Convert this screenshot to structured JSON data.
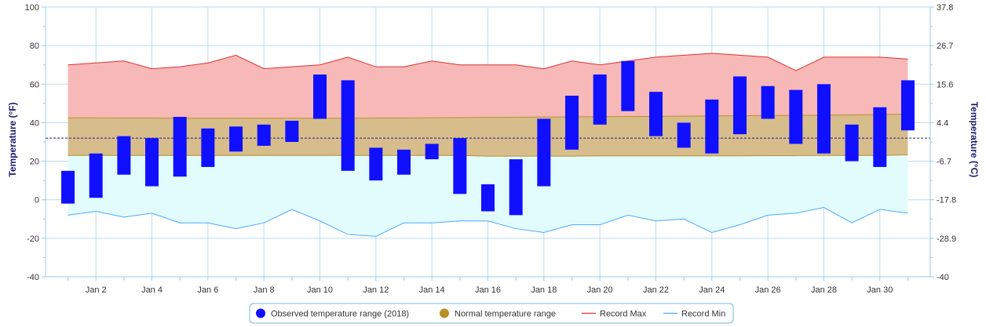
{
  "chart_data": {
    "type": "bar",
    "subtype": "floating-range-bars-with-bands",
    "x": [
      1,
      2,
      3,
      4,
      5,
      6,
      7,
      8,
      9,
      10,
      11,
      12,
      13,
      14,
      15,
      16,
      17,
      18,
      19,
      20,
      21,
      22,
      23,
      24,
      25,
      26,
      27,
      28,
      29,
      30,
      31
    ],
    "x_tick_labels": [
      "Jan 2",
      "Jan 4",
      "Jan 6",
      "Jan 8",
      "Jan 10",
      "Jan 12",
      "Jan 14",
      "Jan 16",
      "Jan 18",
      "Jan 20",
      "Jan 22",
      "Jan 24",
      "Jan 26",
      "Jan 28",
      "Jan 30"
    ],
    "x_tick_values": [
      2,
      4,
      6,
      8,
      10,
      12,
      14,
      16,
      18,
      20,
      22,
      24,
      26,
      28,
      30
    ],
    "xlim": [
      0.2,
      31.8
    ],
    "ylabel": "Temperature (°F)",
    "ylabel_right": "Temperature (°C)",
    "ylim": [
      -40,
      100
    ],
    "y_ticks": [
      -40,
      -20,
      0,
      20,
      40,
      60,
      80,
      100
    ],
    "y_ticks_right": [
      "-40",
      "-28.9",
      "-17.8",
      "-6.7",
      "4.4",
      "15.6",
      "26.7",
      "37.8"
    ],
    "freezing_line": 32,
    "grid": true,
    "legend_position": "bottom",
    "series": [
      {
        "name": "Observed temperature range (2018)",
        "color": "#1010ff",
        "low": [
          -2,
          1,
          13,
          7,
          12,
          17,
          25,
          28,
          30,
          42,
          15,
          10,
          13,
          21,
          3,
          -6,
          -8,
          7,
          26,
          39,
          46,
          33,
          27,
          24,
          34,
          42,
          29,
          24,
          20,
          17,
          36
        ],
        "high": [
          15,
          24,
          33,
          32,
          43,
          37,
          38,
          39,
          41,
          65,
          62,
          27,
          26,
          29,
          32,
          8,
          21,
          42,
          54,
          65,
          72,
          56,
          40,
          52,
          64,
          59,
          57,
          60,
          39,
          48,
          62
        ]
      },
      {
        "name": "Normal temperature range",
        "color": "#b8902a",
        "low": [
          23,
          23,
          23,
          23,
          23,
          23,
          23,
          23,
          23,
          23,
          23,
          23,
          23,
          23,
          23,
          22.6,
          22.6,
          22.6,
          22.6,
          22.8,
          22.8,
          22.8,
          22.8,
          22.8,
          22.8,
          22.9,
          22.9,
          23,
          23,
          23,
          23.3
        ],
        "high": [
          42.5,
          42.5,
          42.4,
          42.4,
          42.3,
          42.3,
          42.3,
          42.3,
          42.3,
          42.3,
          42.3,
          42.4,
          42.4,
          42.5,
          42.6,
          42.7,
          42.8,
          42.9,
          43,
          43.1,
          43.2,
          43.3,
          43.4,
          43.5,
          43.6,
          43.7,
          43.8,
          43.9,
          44,
          44.2,
          44.4
        ]
      },
      {
        "name": "Record Max",
        "color": "#e03030",
        "values": [
          70,
          71,
          72,
          68,
          69,
          71,
          75,
          68,
          69,
          70,
          74,
          69,
          69,
          72,
          70,
          70,
          70,
          68,
          72,
          70,
          72,
          74,
          75,
          76,
          75,
          74,
          67,
          74,
          74,
          74,
          73
        ]
      },
      {
        "name": "Record Min",
        "color": "#4aa8ff",
        "values": [
          -8,
          -6,
          -9,
          -7,
          -12,
          -12,
          -15,
          -12,
          -5,
          -11,
          -18,
          -19,
          -12,
          -12,
          -11,
          -11,
          -15,
          -17,
          -13,
          -13,
          -8,
          -11,
          -10,
          -17,
          -13,
          -8,
          -7,
          -4,
          -12,
          -5,
          -7
        ]
      }
    ]
  },
  "colors": {
    "record_max_fill": "#f7b9b7",
    "normal_fill": "#d8bd8c",
    "record_min_fill": "#e2fcfd",
    "grid": "#b9dcf0",
    "axis": "#9ccbe6",
    "freezing_line": "#1a1a8a",
    "legend_border": "#7ab8e0"
  }
}
